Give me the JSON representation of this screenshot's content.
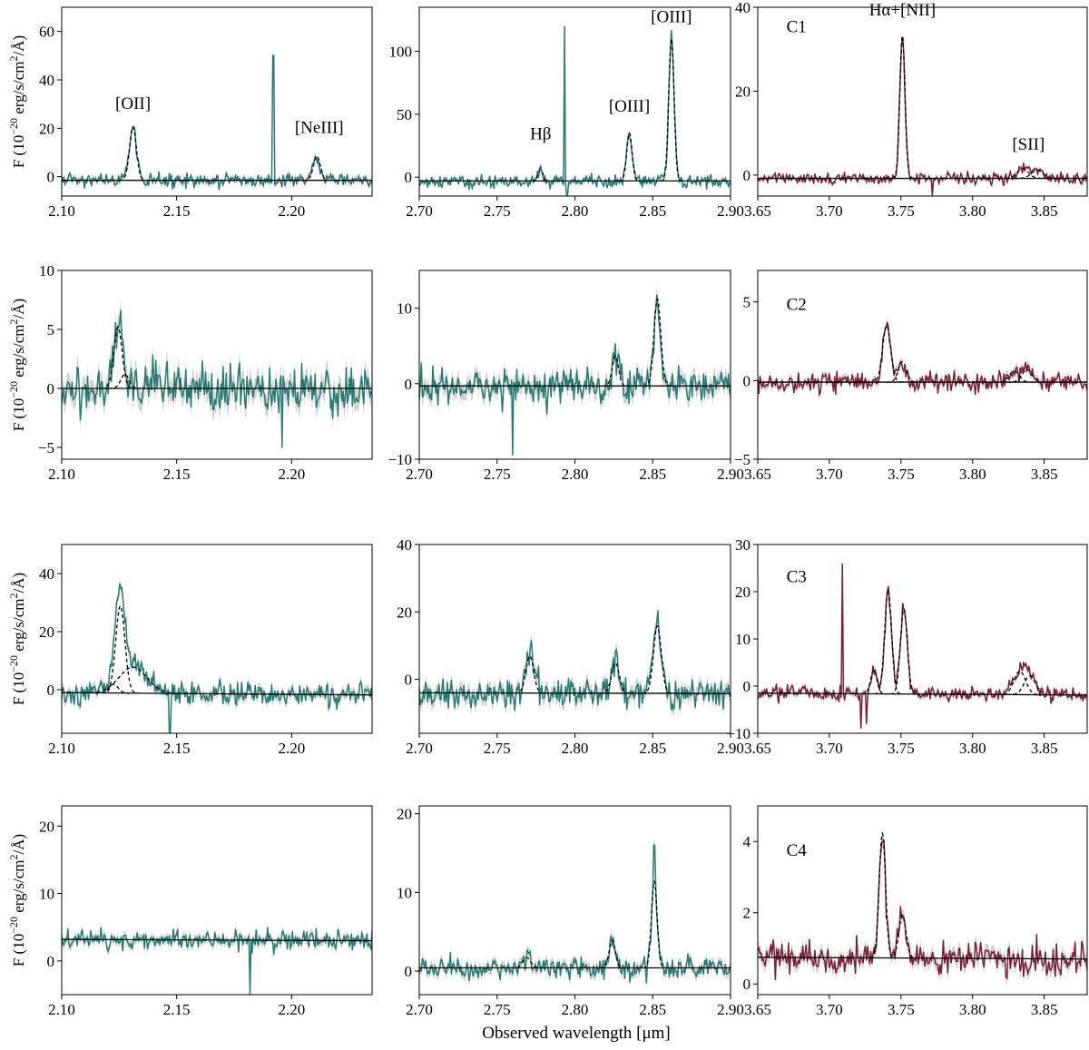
{
  "chart_data": {
    "type": "line",
    "xlabel": "Observed wavelength [μm]",
    "ylabel": {
      "main": "F (10",
      "exp": "−20",
      "units": " erg/s/cm",
      "sq": "2",
      "tail": "/Å)"
    },
    "colors": {
      "green": "#2a7a74",
      "red": "#7a1f35",
      "model": "#000000",
      "error": "#c8c8c8"
    },
    "columns": [
      {
        "xlim": [
          2.1,
          2.235
        ],
        "xticks": [
          2.1,
          2.15,
          2.2
        ],
        "xtick_labels": [
          "2.10",
          "2.15",
          "2.20"
        ],
        "color": "green"
      },
      {
        "xlim": [
          2.7,
          2.9
        ],
        "xticks": [
          2.7,
          2.75,
          2.8,
          2.85,
          2.9
        ],
        "xtick_labels": [
          "2.70",
          "2.75",
          "2.80",
          "2.85",
          "2.90"
        ],
        "color": "green"
      },
      {
        "xlim": [
          3.65,
          3.88
        ],
        "xticks": [
          3.65,
          3.7,
          3.75,
          3.8,
          3.85
        ],
        "xtick_labels": [
          "3.65",
          "3.70",
          "3.75",
          "3.80",
          "3.85"
        ],
        "color": "red"
      }
    ],
    "panels": [
      {
        "row": 0,
        "col": 0,
        "ylim": [
          -8,
          70
        ],
        "yticks": [
          0,
          20,
          40,
          60
        ],
        "ytick_labels": [
          "0",
          "20",
          "40",
          "60"
        ],
        "noise": 2.2,
        "seed": 11,
        "cont": [
          -1.5,
          -1.5
        ],
        "lines": [
          {
            "x": 2.131,
            "a": 22,
            "s": 0.0015
          },
          {
            "x": 2.211,
            "a": 10,
            "s": 0.0015
          }
        ],
        "spikes": [
          {
            "x": 2.192,
            "v": 50
          }
        ],
        "labels": [
          {
            "text": "[OII]",
            "x": 2.131,
            "y": 28
          },
          {
            "text": "[NeIII]",
            "x": 2.212,
            "y": 18
          }
        ]
      },
      {
        "row": 0,
        "col": 1,
        "ylim": [
          -15,
          135
        ],
        "yticks": [
          0,
          50,
          100
        ],
        "ytick_labels": [
          "0",
          "50",
          "100"
        ],
        "noise": 3.5,
        "seed": 12,
        "cont": [
          -3,
          -3
        ],
        "lines": [
          {
            "x": 2.778,
            "a": 9,
            "s": 0.0015
          },
          {
            "x": 2.835,
            "a": 38,
            "s": 0.0017
          },
          {
            "x": 2.862,
            "a": 113,
            "s": 0.0017
          }
        ],
        "spikes": [
          {
            "x": 2.7935,
            "v": 120
          },
          {
            "x": 2.795,
            "v": -14
          }
        ],
        "labels": [
          {
            "text": "Hβ",
            "x": 2.778,
            "y": 30
          },
          {
            "text": "[OIII]",
            "x": 2.835,
            "y": 52
          },
          {
            "text": "[OIII]",
            "x": 2.862,
            "y": 123
          }
        ]
      },
      {
        "row": 0,
        "col": 2,
        "ylim": [
          -5,
          40
        ],
        "yticks": [
          0,
          20,
          40
        ],
        "ytick_labels": [
          "0",
          "20",
          "40"
        ],
        "noise": 1.0,
        "seed": 13,
        "cont": [
          -0.8,
          -0.8
        ],
        "lines": [
          {
            "x": 3.751,
            "a": 34,
            "s": 0.0018
          },
          {
            "x": 3.835,
            "a": 2.3,
            "s": 0.004
          },
          {
            "x": 3.845,
            "a": 2.0,
            "s": 0.004
          }
        ],
        "spikes": [
          {
            "x": 3.772,
            "v": -5
          }
        ],
        "labels": [
          {
            "text": "C1",
            "x": 3.67,
            "y": 34,
            "anchor": "start"
          },
          {
            "text": "Hα+[NII]",
            "x": 3.751,
            "y": 38
          },
          {
            "text": "[SII]",
            "x": 3.839,
            "y": 6
          }
        ]
      },
      {
        "row": 1,
        "col": 0,
        "ylim": [
          -6,
          10
        ],
        "yticks": [
          -5,
          0,
          5,
          10
        ],
        "ytick_labels": [
          "−5",
          "0",
          "5",
          "10"
        ],
        "noise": 1.5,
        "seed": 21,
        "cont": [
          0,
          0
        ],
        "lines": [
          {
            "x": 2.1245,
            "a": 5.2,
            "s": 0.0018
          },
          {
            "x": 2.1275,
            "a": 1.2,
            "s": 0.0018
          }
        ],
        "spikes": [
          {
            "x": 2.196,
            "v": -5
          }
        ],
        "labels": []
      },
      {
        "row": 1,
        "col": 1,
        "ylim": [
          -10,
          15
        ],
        "yticks": [
          -10,
          0,
          10
        ],
        "ytick_labels": [
          "−10",
          "0",
          "10"
        ],
        "noise": 1.8,
        "seed": 22,
        "cont": [
          -0.3,
          -0.3
        ],
        "lines": [
          {
            "x": 2.826,
            "a": 4,
            "s": 0.002
          },
          {
            "x": 2.853,
            "a": 11.5,
            "s": 0.0022
          }
        ],
        "spikes": [
          {
            "x": 2.76,
            "v": -9.5
          }
        ],
        "labels": []
      },
      {
        "row": 1,
        "col": 2,
        "ylim": [
          -5,
          7
        ],
        "yticks": [
          -5,
          0,
          5
        ],
        "ytick_labels": [
          "−5",
          "0",
          "5"
        ],
        "noise": 0.45,
        "seed": 23,
        "cont": [
          -0.1,
          -0.1
        ],
        "lines": [
          {
            "x": 3.74,
            "a": 3.6,
            "s": 0.0028
          },
          {
            "x": 3.751,
            "a": 1.3,
            "s": 0.0028
          },
          {
            "x": 3.829,
            "a": 0.7,
            "s": 0.0035
          },
          {
            "x": 3.838,
            "a": 0.8,
            "s": 0.0035
          }
        ],
        "spikes": [],
        "labels": [
          {
            "text": "C2",
            "x": 3.67,
            "y": 4.5,
            "anchor": "start"
          }
        ]
      },
      {
        "row": 2,
        "col": 0,
        "ylim": [
          -15,
          50
        ],
        "yticks": [
          0,
          20,
          40
        ],
        "ytick_labels": [
          "0",
          "20",
          "40"
        ],
        "noise": 2.8,
        "seed": 31,
        "cont": [
          -1,
          -1.8
        ],
        "lines": [
          {
            "x": 2.1255,
            "a": 30,
            "s": 0.002
          },
          {
            "x": 2.1225,
            "a": 3,
            "s": 0.002
          },
          {
            "x": 2.131,
            "a": 9,
            "s": 0.006
          }
        ],
        "spikes": [
          {
            "x": 2.147,
            "v": -15
          }
        ],
        "labels": []
      },
      {
        "row": 2,
        "col": 1,
        "ylim": [
          -16,
          40
        ],
        "yticks": [
          0,
          20,
          40
        ],
        "ytick_labels": [
          "0",
          "20",
          "40"
        ],
        "noise": 3.5,
        "seed": 32,
        "cont": [
          -4,
          -4.2
        ],
        "lines": [
          {
            "x": 2.771,
            "a": 11,
            "s": 0.0025
          },
          {
            "x": 2.826,
            "a": 9,
            "s": 0.0025
          },
          {
            "x": 2.853,
            "a": 20,
            "s": 0.0025
          }
        ],
        "spikes": [],
        "labels": []
      },
      {
        "row": 2,
        "col": 2,
        "ylim": [
          -10,
          30
        ],
        "yticks": [
          -10,
          0,
          10,
          20,
          30
        ],
        "ytick_labels": [
          "−10",
          "0",
          "10",
          "20",
          "30"
        ],
        "noise": 1.2,
        "seed": 33,
        "cont": [
          -1.5,
          -1.9
        ],
        "lines": [
          {
            "x": 3.731,
            "a": 5,
            "s": 0.0022
          },
          {
            "x": 3.741,
            "a": 22,
            "s": 0.0024
          },
          {
            "x": 3.752,
            "a": 18,
            "s": 0.0024
          },
          {
            "x": 3.833,
            "a": 5,
            "s": 0.004
          },
          {
            "x": 3.84,
            "a": 4,
            "s": 0.004
          }
        ],
        "spikes": [
          {
            "x": 3.709,
            "v": 26
          },
          {
            "x": 3.722,
            "v": -9
          },
          {
            "x": 3.726,
            "v": -8
          }
        ],
        "labels": [
          {
            "text": "C3",
            "x": 3.67,
            "y": 22,
            "anchor": "start"
          }
        ]
      },
      {
        "row": 3,
        "col": 0,
        "ylim": [
          -5,
          23
        ],
        "yticks": [
          0,
          10,
          20
        ],
        "ytick_labels": [
          "0",
          "10",
          "20"
        ],
        "noise": 1.1,
        "seed": 41,
        "cont": [
          3.2,
          3.0
        ],
        "lines": [],
        "spikes": [
          {
            "x": 2.182,
            "v": -5
          }
        ],
        "labels": []
      },
      {
        "row": 3,
        "col": 1,
        "ylim": [
          -3,
          21
        ],
        "yticks": [
          0,
          10,
          20
        ],
        "ytick_labels": [
          "0",
          "10",
          "20"
        ],
        "noise": 1.1,
        "seed": 42,
        "cont": [
          0.4,
          0.4
        ],
        "lines": [
          {
            "x": 2.769,
            "a": 1.3,
            "s": 0.0025
          },
          {
            "x": 2.824,
            "a": 3.5,
            "s": 0.002
          },
          {
            "x": 2.851,
            "a": 11,
            "s": 0.0018
          }
        ],
        "spikes": [
          {
            "x": 2.851,
            "v": 16
          }
        ],
        "labels": []
      },
      {
        "row": 3,
        "col": 2,
        "ylim": [
          -0.3,
          5
        ],
        "yticks": [
          0,
          2,
          4
        ],
        "ytick_labels": [
          "0",
          "2",
          "4"
        ],
        "noise": 0.32,
        "seed": 43,
        "cont": [
          0.75,
          0.7
        ],
        "lines": [
          {
            "x": 3.737,
            "a": 3.5,
            "s": 0.0022
          },
          {
            "x": 3.751,
            "a": 1.2,
            "s": 0.0025
          }
        ],
        "spikes": [],
        "labels": [
          {
            "text": "C4",
            "x": 3.67,
            "y": 3.6,
            "anchor": "start"
          }
        ]
      }
    ]
  }
}
